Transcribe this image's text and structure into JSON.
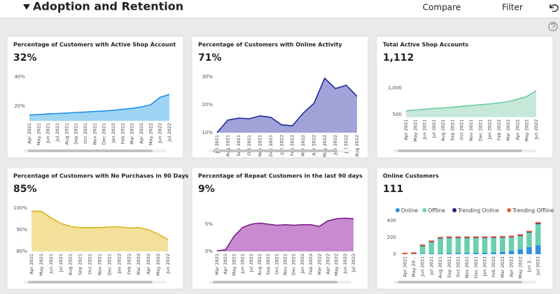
{
  "header": {
    "title": "Adoption and Retention",
    "actions": [
      "Compare",
      "Filter"
    ]
  },
  "cards": [
    {
      "title": "Percentage of Customers with Active Shop Account",
      "kpi": "32%",
      "chart": {
        "type": "area",
        "categories": [
          "Apr 2021",
          "May 2021",
          "Jun 2021",
          "Jul 2021",
          "Aug 2021",
          "Sep 2021",
          "Oct 2021",
          "Nov 2021",
          "Dec 2021",
          "Jan 2022",
          "Feb 2022",
          "Mar 2022",
          "Apr 2022",
          "May 2022",
          "Jun 2022",
          "Jul 2022"
        ],
        "values": [
          14,
          14.3,
          14.7,
          15,
          15.3,
          15.7,
          16,
          16.4,
          16.7,
          17.2,
          17.8,
          18.5,
          19.5,
          21,
          26,
          28
        ],
        "color": "#1e90e8",
        "fill": "#9fd4f5",
        "ylim": [
          10,
          45
        ],
        "yticks": [
          {
            "value": 20,
            "label": "20%"
          },
          {
            "value": 40,
            "label": "40%"
          }
        ]
      }
    },
    {
      "title": "Percentage of Customers with Online Activity",
      "kpi": "71%",
      "chart": {
        "type": "area",
        "categories": [
          "Jul 2021",
          "Aug 2021",
          "Sep 2021",
          "Oct 2021",
          "Nov 2021",
          "Dec 2021",
          "Jan 2022",
          "Feb 2022",
          "Mar 2022",
          "Apr 2022",
          "May 2022",
          "Jun 2022",
          "Jul 2022",
          "Aug 2022"
        ],
        "values": [
          10,
          14.5,
          15.2,
          15,
          16,
          15.5,
          12.8,
          12.5,
          17,
          20.5,
          29.5,
          25.8,
          27,
          23
        ],
        "color": "#1f2a9b",
        "fill": "#9fa3d8",
        "ylim": [
          10,
          32
        ],
        "yticks": [
          {
            "value": 10,
            "label": "10%"
          },
          {
            "value": 20,
            "label": "20%"
          },
          {
            "value": 30,
            "label": "30%"
          }
        ]
      }
    },
    {
      "title": "Total Active Shop Accounts",
      "kpi": "1,112",
      "chart": {
        "type": "area",
        "categories": [
          "Apr 2021",
          "May 2021",
          "Jun 2021",
          "Jul 2021",
          "Aug 2021",
          "Sep 2021",
          "Oct 2021",
          "Nov 2021",
          "Dec 2021",
          "Jan 2022",
          "Feb 2022",
          "Mar 2022",
          "Apr 2022",
          "May 2022",
          "Jun 2022"
        ],
        "values": [
          570,
          585,
          600,
          615,
          625,
          640,
          655,
          670,
          685,
          700,
          720,
          745,
          790,
          840,
          950
        ],
        "color": "#6ccca2",
        "fill": "#c5e8d9",
        "ylim": [
          450,
          1150
        ],
        "yticks": [
          500,
          {
            "value": 1000,
            "label": "1,000"
          }
        ]
      }
    },
    {
      "title": "Percentage of Customers with No Purchases in 90 Days",
      "kpi": "85%",
      "chart": {
        "type": "area",
        "categories": [
          "Apr 2021",
          "May 2021",
          "Jun 2021",
          "Jul 2021",
          "Aug 2021",
          "Sep 2021",
          "Oct 2021",
          "Nov 2021",
          "Dec 2021",
          "Jan 2022",
          "Feb 2022",
          "Mar 2022",
          "Apr 2022",
          "May 2022",
          "Jun 2022"
        ],
        "values": [
          98.5,
          98.5,
          95.5,
          93,
          91.5,
          91,
          91,
          91,
          91.3,
          91.3,
          90.8,
          91,
          90,
          88,
          85.5
        ],
        "color": "#d8b418",
        "fill": "#f3e19b",
        "ylim": [
          80,
          102
        ],
        "yticks": [
          {
            "value": 80,
            "label": "80%"
          },
          {
            "value": 90,
            "label": "90%"
          },
          {
            "value": 100,
            "label": "100%"
          }
        ]
      }
    },
    {
      "title": "Percentage of Repeat Customers in the last 90 days",
      "kpi": "9%",
      "chart": {
        "type": "area",
        "categories": [
          "Mar 2021",
          "Apr 2021",
          "May 2021",
          "Jun 2021",
          "Jul 2021",
          "Aug 2021",
          "Sep 2021",
          "Oct 2021",
          "Nov 2021",
          "Dec 2021",
          "Jan 2022",
          "Feb 2022",
          "Mar 2022",
          "Apr 2022",
          "May 2022",
          "Jun 2022",
          "Jul 2022"
        ],
        "values": [
          0.1,
          0.3,
          2.8,
          4.4,
          5,
          5.2,
          5,
          4.8,
          4.9,
          4.8,
          4.9,
          4.9,
          4.6,
          5.6,
          6,
          6.1,
          6
        ],
        "color": "#7b1f8a",
        "fill": "#c98bd0",
        "ylim": [
          0,
          7
        ],
        "yticks": [
          {
            "value": 0,
            "label": "0%"
          },
          {
            "value": 5,
            "label": "5%"
          }
        ]
      }
    },
    {
      "title": "Online Customers",
      "kpi": "111",
      "chart": {
        "type": "bar",
        "stacked": true,
        "categories": [
          "Apr 2021",
          "May 20...",
          "Jun 2021",
          "Jul 2021",
          "Aug 2021",
          "Sep 2021",
          "Oct 2021",
          "Nov 2021",
          "Dec 2021",
          "Jan 2022",
          "Feb 2022",
          "Mar 2022",
          "Apr 2022",
          "May 2022",
          "Jun 2...",
          "Jul 2022"
        ],
        "series": [
          {
            "name": "Online",
            "color": "#2f8fe0",
            "values": [
              0,
              0,
              5,
              8,
              10,
              12,
              14,
              15,
              16,
              18,
              22,
              28,
              40,
              60,
              85,
              105
            ]
          },
          {
            "name": "Offline",
            "color": "#6ad0ae",
            "values": [
              5,
              10,
              95,
              140,
              180,
              183,
              181,
              180,
              180,
              178,
              176,
              172,
              165,
              160,
              175,
              255
            ]
          },
          {
            "name": "Trending Online",
            "color": "#1a237e",
            "type": "line",
            "values": [
              8,
              12,
              104,
              152,
              195,
              200,
              200,
              200,
              201,
              201,
              203,
              205,
              210,
              225,
              266,
              368
            ]
          },
          {
            "name": "Trending Offline",
            "color": "#e8623c",
            "type": "line",
            "values": [
              10,
              15,
              108,
              156,
              199,
              204,
              204,
              204,
              205,
              205,
              207,
              209,
              214,
              230,
              272,
              376
            ]
          }
        ],
        "ylim": [
          0,
          420
        ],
        "yticks": [
          0,
          200,
          400
        ]
      }
    }
  ]
}
